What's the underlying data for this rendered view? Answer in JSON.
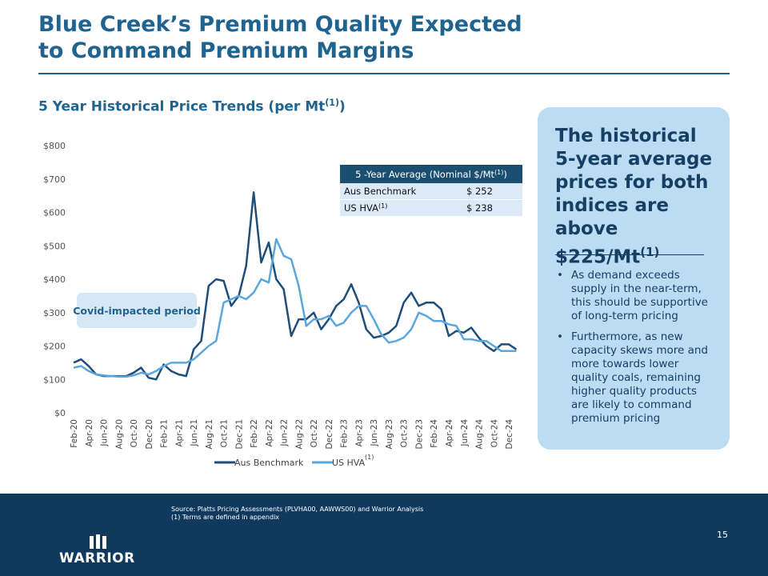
{
  "title_line1": "Blue Creek’s Premium Quality Expected",
  "title_line2": "to Command Premium Margins",
  "subtitle": "5 Year Historical Price Trends (per Mt",
  "subtitle_sup": "(1)",
  "subtitle_end": ")",
  "chart_data": {
    "type": "line",
    "categories": [
      "Feb-20",
      null,
      "Apr-20",
      null,
      "Jun-20",
      null,
      "Aug-20",
      null,
      "Oct-20",
      null,
      "Dec-20",
      null,
      "Feb-21",
      null,
      "Apr-21",
      null,
      "Jun-21",
      null,
      "Aug-21",
      null,
      "Oct-21",
      null,
      "Dec-21",
      null,
      "Feb-22",
      null,
      "Apr-22",
      null,
      "Jun-22",
      null,
      "Aug-22",
      null,
      "Oct-22",
      null,
      "Dec-22",
      null,
      "Feb-23",
      null,
      "Apr-23",
      null,
      "Jun-23",
      null,
      "Aug-23",
      null,
      "Oct-23",
      null,
      "Dec-23",
      null,
      "Feb-24",
      null,
      "Apr-24",
      null,
      "Jun-24",
      null,
      "Aug-24",
      null,
      "Oct-24",
      null,
      "Dec-24",
      null
    ],
    "series": [
      {
        "name": "Aus Benchmark",
        "color": "#1f4e79",
        "values": [
          150,
          160,
          140,
          115,
          110,
          110,
          110,
          110,
          120,
          135,
          105,
          100,
          145,
          125,
          115,
          110,
          190,
          215,
          380,
          400,
          395,
          320,
          350,
          440,
          660,
          450,
          510,
          400,
          370,
          230,
          280,
          280,
          300,
          250,
          280,
          320,
          340,
          385,
          330,
          250,
          225,
          230,
          240,
          260,
          330,
          360,
          320,
          330,
          330,
          310,
          230,
          245,
          240,
          255,
          225,
          200,
          185,
          205,
          205,
          190
        ]
      },
      {
        "name": "US HVA",
        "color": "#5aa7de",
        "values": [
          135,
          140,
          125,
          115,
          112,
          110,
          108,
          108,
          112,
          120,
          115,
          125,
          140,
          150,
          150,
          150,
          160,
          180,
          200,
          215,
          330,
          340,
          350,
          340,
          360,
          400,
          390,
          520,
          470,
          460,
          380,
          260,
          280,
          280,
          290,
          260,
          270,
          300,
          320,
          320,
          280,
          235,
          210,
          215,
          225,
          250,
          300,
          290,
          275,
          275,
          265,
          260,
          220,
          220,
          215,
          215,
          200,
          185,
          185,
          185
        ]
      }
    ],
    "legend_note": "(1)",
    "ylim": [
      0,
      800
    ],
    "yticks": [
      {
        "value": 0,
        "label": "$0"
      },
      {
        "value": 100,
        "label": "$100"
      },
      {
        "value": 200,
        "label": "$200"
      },
      {
        "value": 300,
        "label": "$300"
      },
      {
        "value": 400,
        "label": "$400"
      },
      {
        "value": 500,
        "label": "$500"
      },
      {
        "value": 600,
        "label": "$600"
      },
      {
        "value": 700,
        "label": "$700"
      },
      {
        "value": 800,
        "label": "$800"
      }
    ],
    "annotation": "Covid-impacted period"
  },
  "table": {
    "header": "5 -Year Average (Nominal $/Mt",
    "header_sup": "(1)",
    "header_end": ")",
    "rows": [
      [
        "Aus Benchmark",
        "$ 252"
      ],
      [
        "US HVA",
        "$ 238"
      ]
    ],
    "row1_sup": "(1)"
  },
  "panel": {
    "headline": "The historical 5-year average prices for both indices are above $225/Mt",
    "headline_sup": "(1)",
    "bullets": [
      "As demand exceeds supply in the near-term, this should be supportive of long-term pricing",
      "Furthermore, as new capacity skews more and more towards lower quality coals, remaining higher quality products are likely to command premium pricing"
    ]
  },
  "footer": {
    "source": "Source: Platts Pricing Assessments (PLVHA00, AAWWS00) and Warrior Analysis",
    "note": "(1) Terms are defined in appendix",
    "logo": "WARRIOR",
    "page": "15"
  }
}
